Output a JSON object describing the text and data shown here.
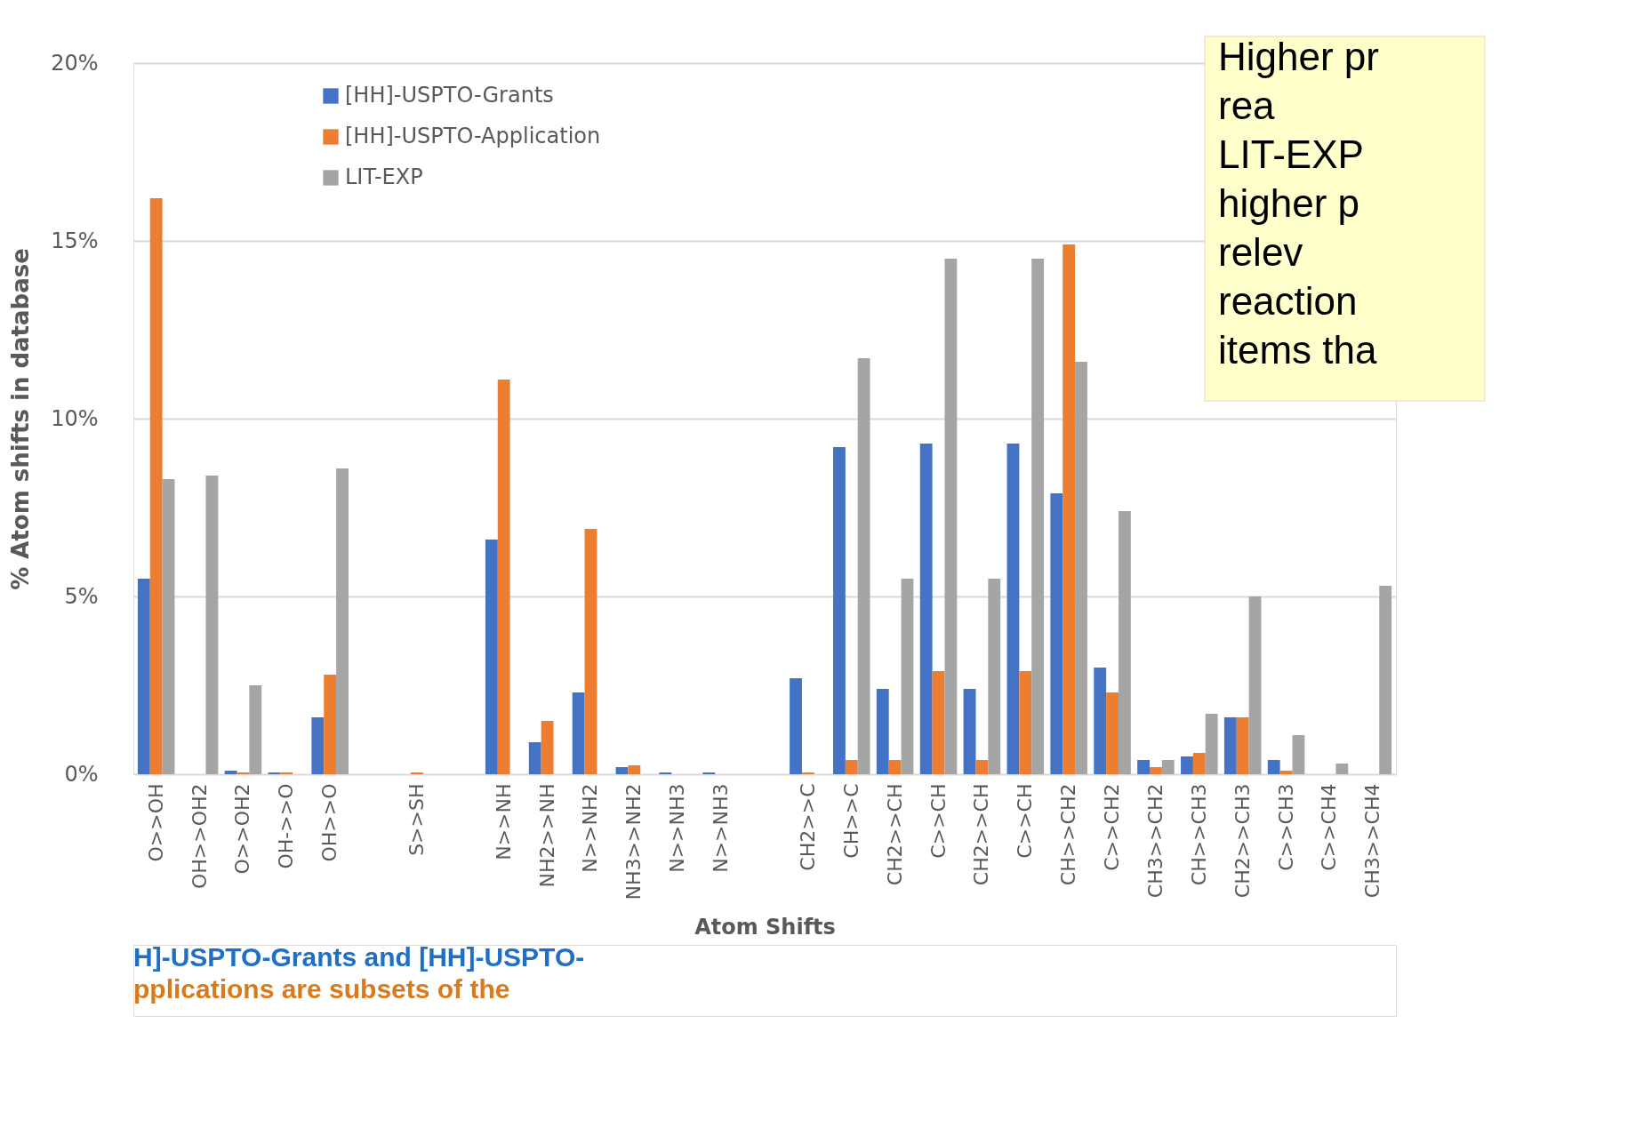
{
  "chart_data": {
    "type": "bar",
    "xlabel": "Atom Shifts",
    "ylabel": "% Atom shifts in database",
    "categories": [
      "O>>OH",
      "OH>>OH2",
      "O>>OH2",
      "OH->>O",
      "OH>>O",
      null,
      "S>>SH",
      null,
      "N>>NH",
      "NH2>>NH",
      "N>>NH2",
      "NH3>>NH2",
      "N>>NH3",
      "N>>NH3",
      null,
      "CH2>>C",
      "CH>>C",
      "CH2>>CH",
      "C>>CH",
      "CH2>>CH",
      "C>>CH",
      "CH>>CH2",
      "C>>CH2",
      "CH3>>CH2",
      "CH>>CH3",
      "CH2>>CH3",
      "C>>CH3",
      "C>>CH4",
      "CH3>>CH4"
    ],
    "series": [
      {
        "name": "[HH]-USPTO-Grants",
        "color": "#4472c4",
        "values": [
          5.5,
          0,
          0.1,
          0.05,
          1.6,
          null,
          0,
          null,
          6.6,
          0.9,
          2.3,
          0.2,
          0.05,
          0.05,
          null,
          2.7,
          9.2,
          2.4,
          9.3,
          2.4,
          9.3,
          7.9,
          3.0,
          0.4,
          0.5,
          1.6,
          0.4,
          0,
          0
        ]
      },
      {
        "name": "[HH]-USPTO-Application",
        "color": "#ed7d31",
        "values": [
          16.2,
          0,
          0.05,
          0.05,
          2.8,
          null,
          0.05,
          null,
          11.1,
          1.5,
          6.9,
          0.25,
          0,
          0,
          null,
          0.05,
          0.4,
          0.4,
          2.9,
          0.4,
          2.9,
          14.9,
          2.3,
          0.2,
          0.6,
          1.6,
          0.1,
          0,
          0
        ]
      },
      {
        "name": "LIT-EXP",
        "color": "#a5a5a5",
        "values": [
          8.3,
          8.4,
          2.5,
          0,
          8.6,
          null,
          0,
          null,
          0,
          0,
          0,
          0,
          0,
          0,
          null,
          0,
          11.7,
          5.5,
          14.5,
          5.5,
          14.5,
          11.6,
          7.4,
          0.4,
          1.7,
          5.0,
          1.1,
          0.3,
          5.3
        ]
      }
    ],
    "ylim": [
      0,
      20
    ],
    "yticks": [
      {
        "value": 0,
        "label": "0%"
      },
      {
        "value": 5,
        "label": "5%"
      },
      {
        "value": 10,
        "label": "10%"
      },
      {
        "value": 15,
        "label": "15%"
      },
      {
        "value": 20,
        "label": "20%"
      }
    ],
    "grid": "y",
    "legend": "top left",
    "annotations": [
      "Higher pr",
      "rea",
      "LIT-EXP",
      "higher p",
      "relev",
      "reaction",
      "items tha",
      "H]-USPTO-Grants and [HH]-USPTO-",
      "pplications are subsets of the"
    ]
  }
}
